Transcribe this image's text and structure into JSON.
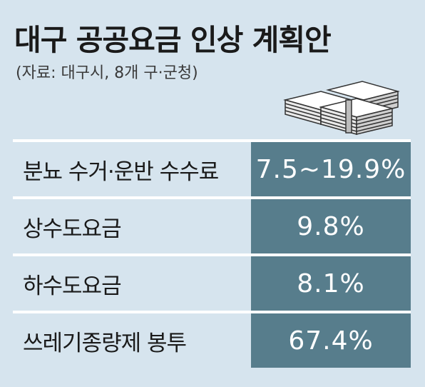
{
  "title": "대구 공공요금 인상 계획안",
  "source": "(자료: 대구시, 8개 구·군청)",
  "icon": "stacked-bills-icon",
  "colors": {
    "background": "#d6e4ee",
    "value_cell": "#577d8c",
    "separator": "#ffffff"
  },
  "rows": [
    {
      "label": "분뇨 수거·운반 수수료",
      "value": "7.5~19.9%"
    },
    {
      "label": "상수도요금",
      "value": "9.8%"
    },
    {
      "label": "하수도요금",
      "value": "8.1%"
    },
    {
      "label": "쓰레기종량제 봉투",
      "value": "67.4%"
    }
  ]
}
